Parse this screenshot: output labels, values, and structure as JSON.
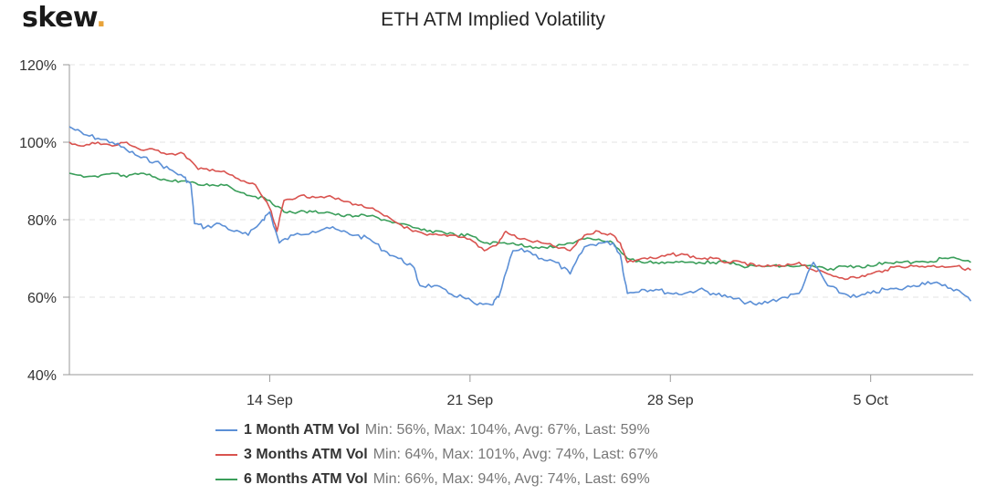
{
  "brand": {
    "logo_text": "skew",
    "logo_dot": "."
  },
  "chart_data": {
    "type": "line",
    "title": "ETH ATM Implied Volatility",
    "y_unit": "%",
    "ylim": [
      40,
      120
    ],
    "y_ticks": [
      40,
      60,
      80,
      100,
      120
    ],
    "y_tick_labels": [
      "40%",
      "60%",
      "80%",
      "100%",
      "120%"
    ],
    "xlim": [
      "2020-09-07T00:00",
      "2020-10-08T14:00"
    ],
    "x_ticks": [
      "2020-09-14",
      "2020-09-21",
      "2020-09-28",
      "2020-10-05"
    ],
    "x_tick_labels": [
      "14 Sep",
      "21 Sep",
      "28 Sep",
      "5 Oct"
    ],
    "grid": "horizontal dashed",
    "legend_position": "bottom",
    "series": [
      {
        "name": "1 Month ATM Vol",
        "stats": "Min: 56%, Max: 104%, Avg: 67%, Last: 59%",
        "color": "#5b8fd6",
        "points": [
          [
            "2020-09-07T00:00",
            104
          ],
          [
            "2020-09-07T12:00",
            102
          ],
          [
            "2020-09-08T00:00",
            101
          ],
          [
            "2020-09-08T12:00",
            100
          ],
          [
            "2020-09-09T00:00",
            98
          ],
          [
            "2020-09-09T12:00",
            96
          ],
          [
            "2020-09-10T00:00",
            95
          ],
          [
            "2020-09-10T12:00",
            93
          ],
          [
            "2020-09-11T00:00",
            91
          ],
          [
            "2020-09-11T06:00",
            89
          ],
          [
            "2020-09-11T09:00",
            79
          ],
          [
            "2020-09-11T18:00",
            78
          ],
          [
            "2020-09-12T06:00",
            79
          ],
          [
            "2020-09-12T18:00",
            77
          ],
          [
            "2020-09-13T06:00",
            76
          ],
          [
            "2020-09-13T18:00",
            80
          ],
          [
            "2020-09-14T00:00",
            82
          ],
          [
            "2020-09-14T08:00",
            74
          ],
          [
            "2020-09-14T20:00",
            76
          ],
          [
            "2020-09-15T12:00",
            77
          ],
          [
            "2020-09-16T00:00",
            78
          ],
          [
            "2020-09-16T12:00",
            77
          ],
          [
            "2020-09-17T00:00",
            76
          ],
          [
            "2020-09-17T12:00",
            75
          ],
          [
            "2020-09-18T00:00",
            72
          ],
          [
            "2020-09-18T12:00",
            70
          ],
          [
            "2020-09-19T00:00",
            68
          ],
          [
            "2020-09-19T06:00",
            63
          ],
          [
            "2020-09-19T18:00",
            63
          ],
          [
            "2020-09-20T06:00",
            61
          ],
          [
            "2020-09-20T18:00",
            60
          ],
          [
            "2020-09-21T06:00",
            58
          ],
          [
            "2020-09-21T18:00",
            58
          ],
          [
            "2020-09-22T00:00",
            60
          ],
          [
            "2020-09-22T12:00",
            72
          ],
          [
            "2020-09-23T00:00",
            72
          ],
          [
            "2020-09-23T12:00",
            70
          ],
          [
            "2020-09-24T00:00",
            69
          ],
          [
            "2020-09-24T12:00",
            66
          ],
          [
            "2020-09-25T00:00",
            73
          ],
          [
            "2020-09-25T12:00",
            74
          ],
          [
            "2020-09-26T00:00",
            74
          ],
          [
            "2020-09-26T06:00",
            71
          ],
          [
            "2020-09-26T12:00",
            61
          ],
          [
            "2020-09-27T00:00",
            62
          ],
          [
            "2020-09-27T12:00",
            62
          ],
          [
            "2020-09-28T00:00",
            61
          ],
          [
            "2020-09-28T12:00",
            61
          ],
          [
            "2020-09-29T00:00",
            62
          ],
          [
            "2020-09-29T12:00",
            61
          ],
          [
            "2020-09-30T00:00",
            60
          ],
          [
            "2020-09-30T12:00",
            59
          ],
          [
            "2020-10-01T00:00",
            58
          ],
          [
            "2020-10-01T12:00",
            59
          ],
          [
            "2020-10-02T00:00",
            60
          ],
          [
            "2020-10-02T12:00",
            61
          ],
          [
            "2020-10-03T00:00",
            69
          ],
          [
            "2020-10-03T12:00",
            63
          ],
          [
            "2020-10-04T00:00",
            61
          ],
          [
            "2020-10-04T12:00",
            60
          ],
          [
            "2020-10-05T00:00",
            61
          ],
          [
            "2020-10-05T12:00",
            62
          ],
          [
            "2020-10-06T00:00",
            62
          ],
          [
            "2020-10-06T12:00",
            63
          ],
          [
            "2020-10-07T00:00",
            64
          ],
          [
            "2020-10-07T12:00",
            63
          ],
          [
            "2020-10-08T00:00",
            62
          ],
          [
            "2020-10-08T12:00",
            59
          ]
        ]
      },
      {
        "name": "3 Months ATM Vol",
        "stats": "Min: 64%, Max: 101%, Avg: 74%, Last: 67%",
        "color": "#d9534f",
        "points": [
          [
            "2020-09-07T00:00",
            100
          ],
          [
            "2020-09-07T12:00",
            99
          ],
          [
            "2020-09-08T00:00",
            100
          ],
          [
            "2020-09-08T12:00",
            99
          ],
          [
            "2020-09-09T00:00",
            100
          ],
          [
            "2020-09-09T12:00",
            98
          ],
          [
            "2020-09-10T00:00",
            98
          ],
          [
            "2020-09-10T12:00",
            97
          ],
          [
            "2020-09-11T00:00",
            97
          ],
          [
            "2020-09-11T12:00",
            93
          ],
          [
            "2020-09-12T00:00",
            93
          ],
          [
            "2020-09-12T12:00",
            92
          ],
          [
            "2020-09-13T00:00",
            90
          ],
          [
            "2020-09-13T12:00",
            89
          ],
          [
            "2020-09-14T00:00",
            83
          ],
          [
            "2020-09-14T06:00",
            77
          ],
          [
            "2020-09-14T12:00",
            85
          ],
          [
            "2020-09-15T00:00",
            86
          ],
          [
            "2020-09-15T12:00",
            86
          ],
          [
            "2020-09-16T00:00",
            86
          ],
          [
            "2020-09-16T12:00",
            85
          ],
          [
            "2020-09-17T00:00",
            84
          ],
          [
            "2020-09-17T12:00",
            83
          ],
          [
            "2020-09-18T00:00",
            81
          ],
          [
            "2020-09-18T12:00",
            79
          ],
          [
            "2020-09-19T00:00",
            77
          ],
          [
            "2020-09-19T12:00",
            76
          ],
          [
            "2020-09-20T00:00",
            76
          ],
          [
            "2020-09-20T12:00",
            76
          ],
          [
            "2020-09-21T00:00",
            75
          ],
          [
            "2020-09-21T12:00",
            72
          ],
          [
            "2020-09-22T00:00",
            74
          ],
          [
            "2020-09-22T06:00",
            77
          ],
          [
            "2020-09-22T18:00",
            75
          ],
          [
            "2020-09-23T12:00",
            74
          ],
          [
            "2020-09-24T00:00",
            73
          ],
          [
            "2020-09-24T12:00",
            72
          ],
          [
            "2020-09-25T00:00",
            76
          ],
          [
            "2020-09-25T12:00",
            77
          ],
          [
            "2020-09-26T00:00",
            76
          ],
          [
            "2020-09-26T06:00",
            74
          ],
          [
            "2020-09-26T12:00",
            69
          ],
          [
            "2020-09-27T00:00",
            70
          ],
          [
            "2020-09-27T12:00",
            70
          ],
          [
            "2020-09-28T00:00",
            71
          ],
          [
            "2020-09-28T12:00",
            71
          ],
          [
            "2020-09-29T00:00",
            70
          ],
          [
            "2020-09-29T12:00",
            70
          ],
          [
            "2020-09-30T00:00",
            69
          ],
          [
            "2020-09-30T12:00",
            69
          ],
          [
            "2020-10-01T00:00",
            68
          ],
          [
            "2020-10-01T12:00",
            68
          ],
          [
            "2020-10-02T00:00",
            68
          ],
          [
            "2020-10-02T12:00",
            69
          ],
          [
            "2020-10-03T00:00",
            67
          ],
          [
            "2020-10-03T12:00",
            66
          ],
          [
            "2020-10-04T00:00",
            65
          ],
          [
            "2020-10-04T12:00",
            65
          ],
          [
            "2020-10-05T00:00",
            66
          ],
          [
            "2020-10-05T12:00",
            67
          ],
          [
            "2020-10-06T00:00",
            68
          ],
          [
            "2020-10-06T12:00",
            68
          ],
          [
            "2020-10-07T00:00",
            68
          ],
          [
            "2020-10-07T12:00",
            68
          ],
          [
            "2020-10-08T00:00",
            68
          ],
          [
            "2020-10-08T12:00",
            67
          ]
        ]
      },
      {
        "name": "6 Months ATM Vol",
        "stats": "Min: 66%, Max: 94%, Avg: 74%, Last: 69%",
        "color": "#3a9e5a",
        "points": [
          [
            "2020-09-07T00:00",
            92
          ],
          [
            "2020-09-07T12:00",
            91
          ],
          [
            "2020-09-08T00:00",
            91
          ],
          [
            "2020-09-08T12:00",
            92
          ],
          [
            "2020-09-09T00:00",
            91
          ],
          [
            "2020-09-09T12:00",
            92
          ],
          [
            "2020-09-10T00:00",
            91
          ],
          [
            "2020-09-10T12:00",
            90
          ],
          [
            "2020-09-11T00:00",
            90
          ],
          [
            "2020-09-11T12:00",
            89
          ],
          [
            "2020-09-12T00:00",
            89
          ],
          [
            "2020-09-12T12:00",
            89
          ],
          [
            "2020-09-13T00:00",
            87
          ],
          [
            "2020-09-13T12:00",
            86
          ],
          [
            "2020-09-14T00:00",
            85
          ],
          [
            "2020-09-14T12:00",
            82
          ],
          [
            "2020-09-15T00:00",
            82
          ],
          [
            "2020-09-15T12:00",
            82
          ],
          [
            "2020-09-16T00:00",
            82
          ],
          [
            "2020-09-16T12:00",
            81
          ],
          [
            "2020-09-17T00:00",
            81
          ],
          [
            "2020-09-17T12:00",
            81
          ],
          [
            "2020-09-18T00:00",
            80
          ],
          [
            "2020-09-18T12:00",
            79
          ],
          [
            "2020-09-19T00:00",
            78
          ],
          [
            "2020-09-19T12:00",
            77
          ],
          [
            "2020-09-20T00:00",
            77
          ],
          [
            "2020-09-20T12:00",
            76
          ],
          [
            "2020-09-21T00:00",
            76
          ],
          [
            "2020-09-21T12:00",
            74
          ],
          [
            "2020-09-22T00:00",
            74
          ],
          [
            "2020-09-22T12:00",
            74
          ],
          [
            "2020-09-23T00:00",
            73
          ],
          [
            "2020-09-23T12:00",
            73
          ],
          [
            "2020-09-24T00:00",
            73
          ],
          [
            "2020-09-24T12:00",
            74
          ],
          [
            "2020-09-25T00:00",
            75
          ],
          [
            "2020-09-25T12:00",
            75
          ],
          [
            "2020-09-26T00:00",
            74
          ],
          [
            "2020-09-26T12:00",
            70
          ],
          [
            "2020-09-27T00:00",
            69
          ],
          [
            "2020-09-27T12:00",
            69
          ],
          [
            "2020-09-28T00:00",
            69
          ],
          [
            "2020-09-28T12:00",
            69
          ],
          [
            "2020-09-29T00:00",
            69
          ],
          [
            "2020-09-29T12:00",
            69
          ],
          [
            "2020-09-30T00:00",
            69
          ],
          [
            "2020-09-30T12:00",
            68
          ],
          [
            "2020-10-01T00:00",
            68
          ],
          [
            "2020-10-01T12:00",
            68
          ],
          [
            "2020-10-02T00:00",
            68
          ],
          [
            "2020-10-02T12:00",
            68
          ],
          [
            "2020-10-03T00:00",
            68
          ],
          [
            "2020-10-03T12:00",
            67
          ],
          [
            "2020-10-04T00:00",
            68
          ],
          [
            "2020-10-04T12:00",
            68
          ],
          [
            "2020-10-05T00:00",
            68
          ],
          [
            "2020-10-05T12:00",
            69
          ],
          [
            "2020-10-06T00:00",
            69
          ],
          [
            "2020-10-06T12:00",
            69
          ],
          [
            "2020-10-07T00:00",
            69
          ],
          [
            "2020-10-07T12:00",
            70
          ],
          [
            "2020-10-08T00:00",
            70
          ],
          [
            "2020-10-08T12:00",
            69
          ]
        ]
      }
    ]
  }
}
